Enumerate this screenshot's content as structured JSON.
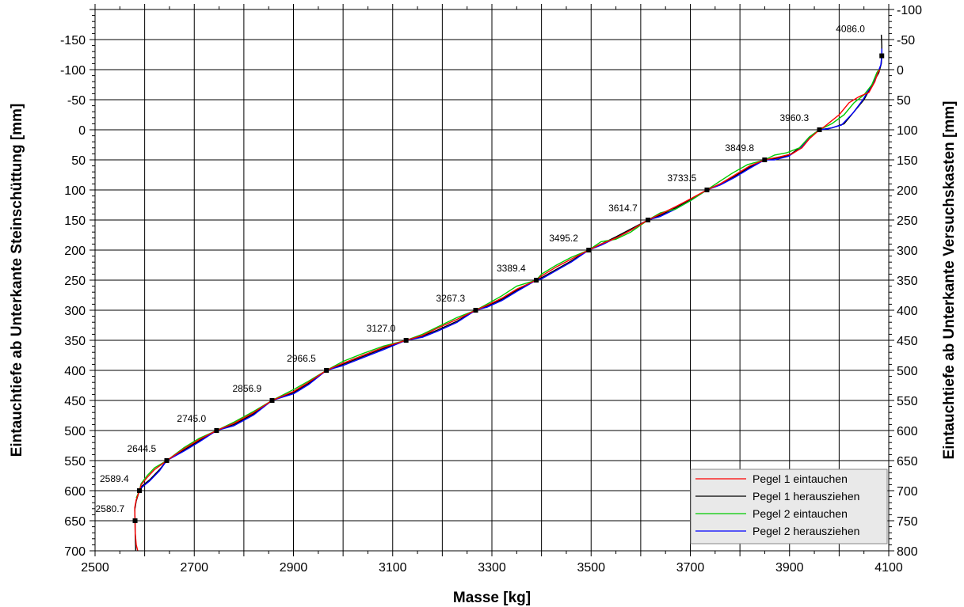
{
  "chart_data": {
    "type": "line",
    "xlabel": "Masse [kg]",
    "ylabel_left": "Eintauchtiefe ab Unterkante Steinschüttung [mm]",
    "ylabel_right": "Eintauchtiefe ab Unterkante Versuchskasten [mm]",
    "xlim": [
      2500,
      4100
    ],
    "ylim_left": [
      -200,
      700
    ],
    "ylim_right": [
      -100,
      800
    ],
    "x_ticks": [
      "2500",
      "2700",
      "2900",
      "3100",
      "3300",
      "3500",
      "3700",
      "3900",
      "4100"
    ],
    "y_left_ticks": [
      "-150",
      "-100",
      "-50",
      "0",
      "50",
      "100",
      "150",
      "200",
      "250",
      "300",
      "350",
      "400",
      "450",
      "500",
      "550",
      "600",
      "650",
      "700"
    ],
    "y_right_ticks": [
      "-100",
      "-50",
      "0",
      "50",
      "100",
      "150",
      "200",
      "250",
      "300",
      "350",
      "400",
      "450",
      "500",
      "550",
      "600",
      "650",
      "700",
      "750",
      "800"
    ],
    "grid": true,
    "y_inverted": true,
    "legend_position": "bottom-right",
    "series": [
      {
        "name": "Pegel 1 eintauchen",
        "color": "#ff0000",
        "points": [
          [
            4082,
            -100
          ],
          [
            4078,
            -95
          ],
          [
            4072,
            -80
          ],
          [
            4060,
            -62
          ],
          [
            4040,
            -55
          ],
          [
            4020,
            -45
          ],
          [
            4000,
            -25
          ],
          [
            3985,
            -15
          ],
          [
            3970,
            -5
          ],
          [
            3960.3,
            0
          ],
          [
            3940,
            15
          ],
          [
            3925,
            30
          ],
          [
            3905,
            40
          ],
          [
            3880,
            45
          ],
          [
            3849.8,
            50
          ],
          [
            3820,
            60
          ],
          [
            3790,
            75
          ],
          [
            3760,
            90
          ],
          [
            3733.5,
            100
          ],
          [
            3700,
            115
          ],
          [
            3670,
            128
          ],
          [
            3640,
            140
          ],
          [
            3614.7,
            150
          ],
          [
            3580,
            167
          ],
          [
            3550,
            180
          ],
          [
            3520,
            190
          ],
          [
            3495.2,
            200
          ],
          [
            3460,
            215
          ],
          [
            3430,
            228
          ],
          [
            3400,
            243
          ],
          [
            3389.4,
            250
          ],
          [
            3350,
            265
          ],
          [
            3320,
            280
          ],
          [
            3290,
            292
          ],
          [
            3267.3,
            300
          ],
          [
            3230,
            315
          ],
          [
            3190,
            330
          ],
          [
            3160,
            342
          ],
          [
            3127.0,
            350
          ],
          [
            3080,
            362
          ],
          [
            3040,
            375
          ],
          [
            3000,
            388
          ],
          [
            2966.5,
            400
          ],
          [
            2930,
            420
          ],
          [
            2900,
            435
          ],
          [
            2856.9,
            450
          ],
          [
            2820,
            470
          ],
          [
            2780,
            488
          ],
          [
            2745.0,
            500
          ],
          [
            2710,
            515
          ],
          [
            2680,
            530
          ],
          [
            2644.5,
            550
          ],
          [
            2620,
            565
          ],
          [
            2605,
            578
          ],
          [
            2593,
            590
          ],
          [
            2589.4,
            600
          ],
          [
            2583,
            615
          ],
          [
            2580,
            628
          ],
          [
            2580.7,
            650
          ],
          [
            2581,
            670
          ],
          [
            2583,
            690
          ],
          [
            2586,
            700
          ]
        ]
      },
      {
        "name": "Pegel 1 herausziehen",
        "color": "#000000",
        "points": [
          [
            4085,
            -158
          ],
          [
            4086,
            -140
          ],
          [
            4086.0,
            -123
          ],
          [
            4085,
            -110
          ],
          [
            4080,
            -95
          ],
          [
            4070,
            -80
          ],
          [
            4050,
            -50
          ],
          [
            4030,
            -30
          ],
          [
            4010,
            -10
          ],
          [
            3985,
            -3
          ],
          [
            3960.3,
            0
          ],
          [
            3940,
            12
          ],
          [
            3920,
            30
          ],
          [
            3900,
            42
          ],
          [
            3870,
            48
          ],
          [
            3849.8,
            50
          ],
          [
            3820,
            62
          ],
          [
            3790,
            77
          ],
          [
            3760,
            90
          ],
          [
            3733.5,
            100
          ],
          [
            3700,
            116
          ],
          [
            3670,
            130
          ],
          [
            3640,
            142
          ],
          [
            3614.7,
            150
          ],
          [
            3580,
            165
          ],
          [
            3550,
            178
          ],
          [
            3520,
            190
          ],
          [
            3495.2,
            200
          ],
          [
            3460,
            218
          ],
          [
            3430,
            232
          ],
          [
            3400,
            246
          ],
          [
            3389.4,
            250
          ],
          [
            3350,
            267
          ],
          [
            3320,
            282
          ],
          [
            3290,
            293
          ],
          [
            3267.3,
            300
          ],
          [
            3230,
            318
          ],
          [
            3190,
            333
          ],
          [
            3160,
            343
          ],
          [
            3127.0,
            350
          ],
          [
            3080,
            364
          ],
          [
            3040,
            377
          ],
          [
            3000,
            390
          ],
          [
            2966.5,
            400
          ],
          [
            2930,
            422
          ],
          [
            2900,
            437
          ],
          [
            2856.9,
            450
          ],
          [
            2820,
            472
          ],
          [
            2780,
            490
          ],
          [
            2745.0,
            500
          ],
          [
            2710,
            517
          ],
          [
            2680,
            532
          ],
          [
            2644.5,
            550
          ],
          [
            2630,
            565
          ],
          [
            2610,
            582
          ],
          [
            2595,
            592
          ],
          [
            2589.4,
            600
          ],
          [
            2583,
            617
          ],
          [
            2580,
            632
          ],
          [
            2580.7,
            650
          ],
          [
            2581,
            675
          ],
          [
            2582,
            700
          ]
        ]
      },
      {
        "name": "Pegel 2 eintauchen",
        "color": "#00cc00",
        "points": [
          [
            4080,
            -100
          ],
          [
            4076,
            -95
          ],
          [
            4066,
            -75
          ],
          [
            4050,
            -58
          ],
          [
            4030,
            -45
          ],
          [
            4010,
            -25
          ],
          [
            3985,
            -10
          ],
          [
            3960.3,
            0
          ],
          [
            3940,
            12
          ],
          [
            3920,
            30
          ],
          [
            3895,
            38
          ],
          [
            3870,
            42
          ],
          [
            3849.8,
            50
          ],
          [
            3815,
            58
          ],
          [
            3785,
            72
          ],
          [
            3755,
            88
          ],
          [
            3733.5,
            100
          ],
          [
            3700,
            118
          ],
          [
            3670,
            132
          ],
          [
            3640,
            138
          ],
          [
            3614.7,
            150
          ],
          [
            3580,
            170
          ],
          [
            3550,
            182
          ],
          [
            3520,
            186
          ],
          [
            3495.2,
            200
          ],
          [
            3460,
            212
          ],
          [
            3430,
            225
          ],
          [
            3400,
            240
          ],
          [
            3389.4,
            250
          ],
          [
            3350,
            260
          ],
          [
            3320,
            276
          ],
          [
            3290,
            290
          ],
          [
            3267.3,
            300
          ],
          [
            3230,
            312
          ],
          [
            3190,
            328
          ],
          [
            3160,
            340
          ],
          [
            3127.0,
            350
          ],
          [
            3080,
            360
          ],
          [
            3040,
            372
          ],
          [
            3000,
            385
          ],
          [
            2966.5,
            400
          ],
          [
            2930,
            418
          ],
          [
            2900,
            432
          ],
          [
            2856.9,
            450
          ],
          [
            2820,
            468
          ],
          [
            2780,
            486
          ],
          [
            2745.0,
            500
          ],
          [
            2710,
            513
          ],
          [
            2680,
            528
          ],
          [
            2644.5,
            550
          ],
          [
            2620,
            562
          ],
          [
            2605,
            575
          ],
          [
            2593,
            588
          ],
          [
            2589.4,
            600
          ],
          [
            2583,
            612
          ]
        ]
      },
      {
        "name": "Pegel 2 herausziehen",
        "color": "#0000ff",
        "points": [
          [
            4086,
            -135
          ],
          [
            4086.0,
            -123
          ],
          [
            4084,
            -108
          ],
          [
            4078,
            -95
          ],
          [
            4068,
            -78
          ],
          [
            4048,
            -50
          ],
          [
            4028,
            -28
          ],
          [
            4005,
            -8
          ],
          [
            3980,
            -2
          ],
          [
            3960.3,
            0
          ],
          [
            3940,
            14
          ],
          [
            3920,
            32
          ],
          [
            3898,
            44
          ],
          [
            3870,
            50
          ],
          [
            3849.8,
            50
          ],
          [
            3820,
            64
          ],
          [
            3790,
            79
          ],
          [
            3760,
            92
          ],
          [
            3733.5,
            100
          ],
          [
            3700,
            118
          ],
          [
            3670,
            132
          ],
          [
            3640,
            144
          ],
          [
            3614.7,
            150
          ],
          [
            3580,
            167
          ],
          [
            3550,
            180
          ],
          [
            3520,
            192
          ],
          [
            3495.2,
            200
          ],
          [
            3460,
            220
          ],
          [
            3430,
            234
          ],
          [
            3400,
            248
          ],
          [
            3389.4,
            250
          ],
          [
            3350,
            269
          ],
          [
            3320,
            284
          ],
          [
            3290,
            295
          ],
          [
            3267.3,
            300
          ],
          [
            3230,
            320
          ],
          [
            3190,
            335
          ],
          [
            3160,
            345
          ],
          [
            3127.0,
            350
          ],
          [
            3080,
            366
          ],
          [
            3040,
            379
          ],
          [
            3000,
            392
          ],
          [
            2966.5,
            400
          ],
          [
            2930,
            424
          ],
          [
            2900,
            439
          ],
          [
            2856.9,
            450
          ],
          [
            2820,
            474
          ],
          [
            2780,
            492
          ],
          [
            2745.0,
            500
          ],
          [
            2710,
            519
          ],
          [
            2680,
            534
          ],
          [
            2644.5,
            550
          ],
          [
            2630,
            567
          ],
          [
            2610,
            584
          ],
          [
            2595,
            594
          ],
          [
            2589.4,
            600
          ]
        ]
      }
    ],
    "markers": [
      {
        "x": 4086.0,
        "y": -123,
        "label": "4086.0"
      },
      {
        "x": 3960.3,
        "y": 0,
        "label": "3960.3"
      },
      {
        "x": 3849.8,
        "y": 50,
        "label": "3849.8"
      },
      {
        "x": 3733.5,
        "y": 100,
        "label": "3733.5"
      },
      {
        "x": 3614.7,
        "y": 150,
        "label": "3614.7"
      },
      {
        "x": 3495.2,
        "y": 200,
        "label": "3495.2"
      },
      {
        "x": 3389.4,
        "y": 250,
        "label": "3389.4"
      },
      {
        "x": 3267.3,
        "y": 300,
        "label": "3267.3"
      },
      {
        "x": 3127.0,
        "y": 350,
        "label": "3127.0"
      },
      {
        "x": 2966.5,
        "y": 400,
        "label": "2966.5"
      },
      {
        "x": 2856.9,
        "y": 450,
        "label": "2856.9"
      },
      {
        "x": 2745.0,
        "y": 500,
        "label": "2745.0"
      },
      {
        "x": 2644.5,
        "y": 550,
        "label": "2644.5"
      },
      {
        "x": 2589.4,
        "y": 600,
        "label": "2589.4"
      },
      {
        "x": 2580.7,
        "y": 650,
        "label": "2580.7"
      }
    ]
  }
}
